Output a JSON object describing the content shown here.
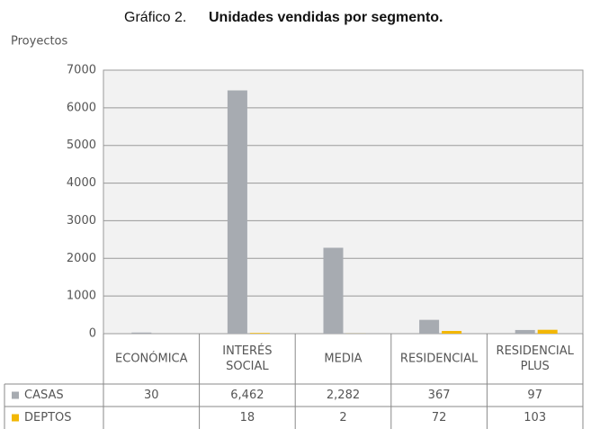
{
  "chart_data": {
    "type": "bar",
    "title": [
      "Gráfico 2.",
      "Unidades vendidas por segmento."
    ],
    "y_label": "Proyectos",
    "categories": [
      [
        "ECONÓMICA"
      ],
      [
        "INTERÉS",
        "SOCIAL"
      ],
      [
        "MEDIA"
      ],
      [
        "RESIDENCIAL"
      ],
      [
        "RESIDENCIAL",
        "PLUS"
      ]
    ],
    "series": [
      {
        "name": "CASAS",
        "color": "#a7abb1",
        "values": [
          30,
          6462,
          2282,
          367,
          97
        ],
        "value_labels": [
          "30",
          "6,462",
          "2,282",
          "367",
          "97"
        ]
      },
      {
        "name": "DEPTOS",
        "color": "#f2b705",
        "values": [
          null,
          18,
          2,
          72,
          103
        ],
        "value_labels": [
          null,
          "18",
          "2",
          "72",
          "103"
        ]
      }
    ],
    "ylim": [
      0,
      7000
    ],
    "yticks": [
      0,
      1000,
      2000,
      3000,
      4000,
      5000,
      6000,
      7000
    ],
    "grid": true
  }
}
